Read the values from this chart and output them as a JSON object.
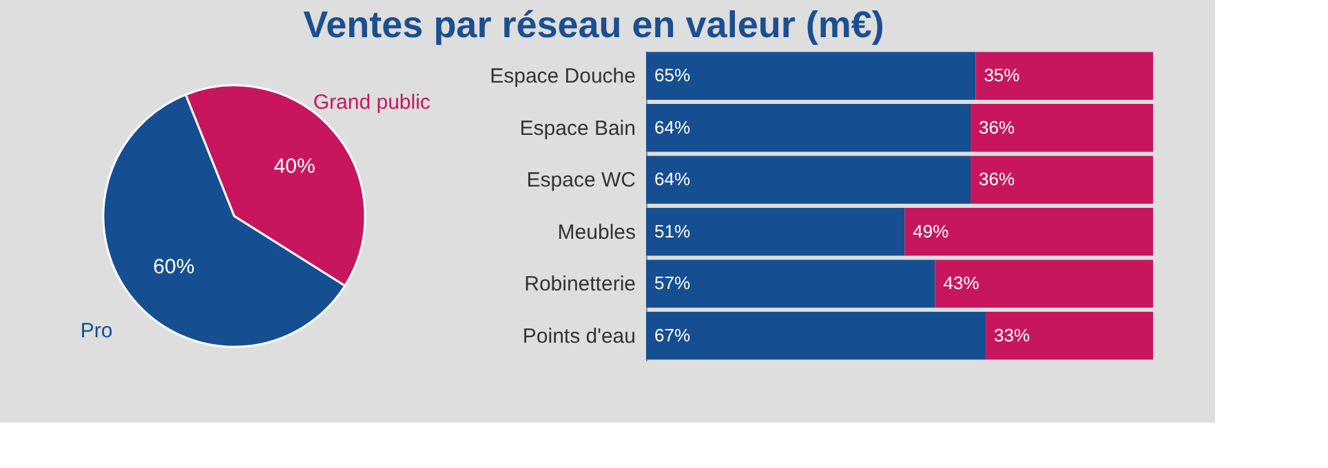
{
  "chart_data": [
    {
      "type": "pie",
      "title": "Ventes par réseau en valeur (m€)",
      "categories": [
        "Grand public",
        "Pro"
      ],
      "values": [
        40,
        60
      ],
      "colors": [
        "#c8165e",
        "#154f91"
      ],
      "value_labels": [
        "40%",
        "60%"
      ],
      "legend": false
    },
    {
      "type": "bar",
      "orientation": "horizontal",
      "stacked": true,
      "categories": [
        "Espace Douche",
        "Espace Bain",
        "Espace WC",
        "Meubles",
        "Robinetterie",
        "Points d'eau"
      ],
      "series": [
        {
          "color": "#154f91",
          "values": [
            65,
            64,
            64,
            51,
            57,
            67
          ],
          "value_labels": [
            "65%",
            "64%",
            "64%",
            "51%",
            "57%",
            "67%"
          ]
        },
        {
          "color": "#c8165e",
          "values": [
            35,
            36,
            36,
            49,
            43,
            33
          ],
          "value_labels": [
            "35%",
            "36%",
            "36%",
            "49%",
            "43%",
            "33%"
          ]
        }
      ]
    }
  ]
}
